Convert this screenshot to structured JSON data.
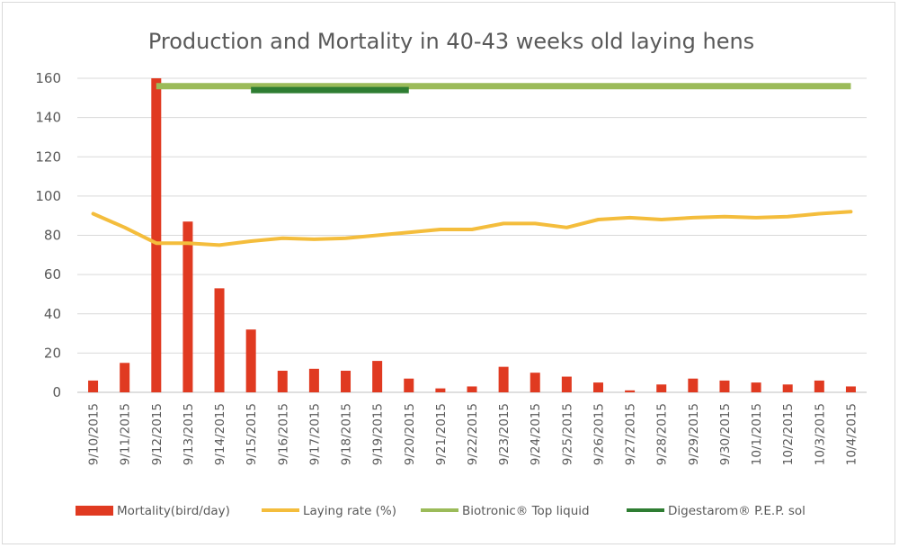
{
  "chart_data": {
    "type": "bar",
    "title": "Production and Mortality in 40-43 weeks old laying hens",
    "xlabel": "",
    "ylabel": "",
    "ylim": [
      0,
      160
    ],
    "yticks": [
      "0",
      "20",
      "40",
      "60",
      "80",
      "100",
      "120",
      "140",
      "160"
    ],
    "grid": true,
    "legend_position": "bottom",
    "categories": [
      "9/10/2015",
      "9/11/2015",
      "9/12/2015",
      "9/13/2015",
      "9/14/2015",
      "9/15/2015",
      "9/16/2015",
      "9/17/2015",
      "9/18/2015",
      "9/19/2015",
      "9/20/2015",
      "9/21/2015",
      "9/22/2015",
      "9/23/2015",
      "9/24/2015",
      "9/25/2015",
      "9/26/2015",
      "9/27/2015",
      "9/28/2015",
      "9/29/2015",
      "9/30/2015",
      "10/1/2015",
      "10/2/2015",
      "10/3/2015",
      "10/4/2015"
    ],
    "series": [
      {
        "name": "Mortality(bird/day)",
        "type": "bar",
        "color": "#e03a21",
        "values": [
          6,
          15,
          160,
          87,
          53,
          32,
          11,
          12,
          11,
          16,
          7,
          2,
          3,
          13,
          10,
          8,
          5,
          1,
          4,
          7,
          6,
          5,
          4,
          6,
          3
        ]
      },
      {
        "name": "Laying rate (%)",
        "type": "line",
        "color": "#f4bd3c",
        "values": [
          91,
          84,
          76,
          76,
          75,
          77,
          78.5,
          78,
          78.5,
          80,
          81.5,
          83,
          83,
          86,
          86,
          84,
          88,
          89,
          88,
          89,
          89.5,
          89,
          89.5,
          91,
          92
        ]
      },
      {
        "name": "Biotronic® Top liquid",
        "type": "range",
        "color": "#9bbb59",
        "y": 156,
        "start": "9/12/2015",
        "end": "10/4/2015"
      },
      {
        "name": "Digestarom® P.E.P. sol",
        "type": "range",
        "color": "#2e7d32",
        "y": 154,
        "start": "9/15/2015",
        "end": "9/20/2015"
      }
    ]
  }
}
